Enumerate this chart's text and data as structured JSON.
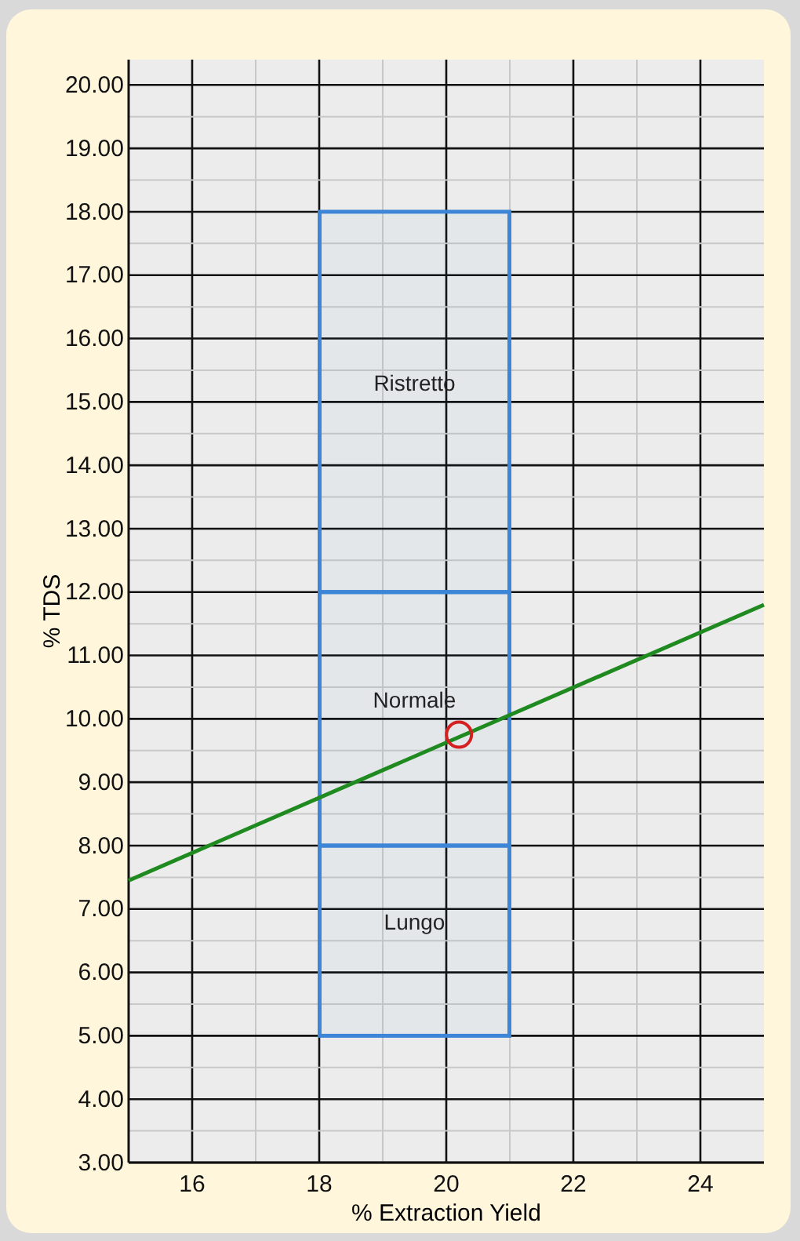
{
  "chart_data": {
    "type": "line",
    "xlabel": "% Extraction Yield",
    "ylabel": "% TDS",
    "xlim": [
      15,
      25
    ],
    "ylim": [
      3,
      20.4
    ],
    "xticks": [
      {
        "value": 16,
        "label": "16"
      },
      {
        "value": 17,
        "label": null
      },
      {
        "value": 18,
        "label": "18"
      },
      {
        "value": 19,
        "label": null
      },
      {
        "value": 20,
        "label": "20"
      },
      {
        "value": 21,
        "label": null
      },
      {
        "value": 22,
        "label": "22"
      },
      {
        "value": 23,
        "label": null
      },
      {
        "value": 24,
        "label": "24"
      }
    ],
    "yticks": [
      {
        "value": 3,
        "label": "3.00"
      },
      {
        "value": 3.5,
        "label": null
      },
      {
        "value": 4,
        "label": "4.00"
      },
      {
        "value": 4.5,
        "label": null
      },
      {
        "value": 5,
        "label": "5.00"
      },
      {
        "value": 5.5,
        "label": null
      },
      {
        "value": 6,
        "label": "6.00"
      },
      {
        "value": 6.5,
        "label": null
      },
      {
        "value": 7,
        "label": "7.00"
      },
      {
        "value": 7.5,
        "label": null
      },
      {
        "value": 8,
        "label": "8.00"
      },
      {
        "value": 8.5,
        "label": null
      },
      {
        "value": 9,
        "label": "9.00"
      },
      {
        "value": 9.5,
        "label": null
      },
      {
        "value": 10,
        "label": "10.00"
      },
      {
        "value": 10.5,
        "label": null
      },
      {
        "value": 11,
        "label": "11.00"
      },
      {
        "value": 11.5,
        "label": null
      },
      {
        "value": 12,
        "label": "12.00"
      },
      {
        "value": 12.5,
        "label": null
      },
      {
        "value": 13,
        "label": "13.00"
      },
      {
        "value": 13.5,
        "label": null
      },
      {
        "value": 14,
        "label": "14.00"
      },
      {
        "value": 14.5,
        "label": null
      },
      {
        "value": 15,
        "label": "15.00"
      },
      {
        "value": 15.5,
        "label": null
      },
      {
        "value": 16,
        "label": "16.00"
      },
      {
        "value": 16.5,
        "label": null
      },
      {
        "value": 17,
        "label": "17.00"
      },
      {
        "value": 17.5,
        "label": null
      },
      {
        "value": 18,
        "label": "18.00"
      },
      {
        "value": 18.5,
        "label": null
      },
      {
        "value": 19,
        "label": "19.00"
      },
      {
        "value": 19.5,
        "label": null
      },
      {
        "value": 20,
        "label": "20.00"
      }
    ],
    "grid": true,
    "legend": false,
    "series": [
      {
        "name": "Lungo",
        "type": "bar",
        "color": "#3d85d6",
        "x": [
          19.5
        ],
        "base": [
          5
        ],
        "values": [
          3
        ]
      },
      {
        "name": "Normale",
        "type": "bar",
        "color": "#3d85d6",
        "x": [
          19.5
        ],
        "base": [
          8
        ],
        "values": [
          4
        ]
      },
      {
        "name": "Ristretto",
        "type": "bar",
        "color": "#3d85d6",
        "x": [
          19.5
        ],
        "base": [
          12
        ],
        "values": [
          6
        ]
      },
      {
        "color": "#1f8a1f",
        "x": [
          15,
          25
        ],
        "values": [
          7.45,
          11.8
        ]
      },
      {
        "type": "scatter",
        "color": "#d42020",
        "marker": "circle",
        "x": [
          20.2
        ],
        "values": [
          9.75
        ]
      }
    ]
  }
}
